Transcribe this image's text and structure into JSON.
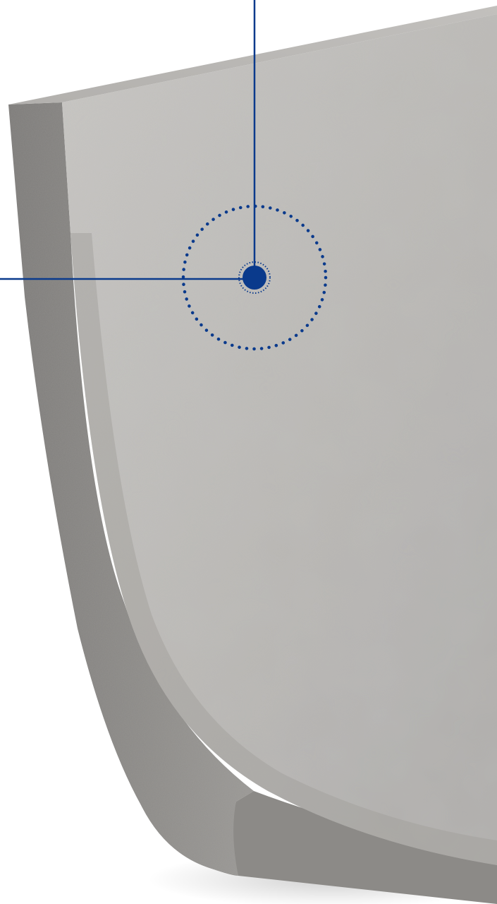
{
  "scene": {
    "background_color": "#ffffff",
    "object": "concrete-channel-section",
    "concrete_face_color": "#bdbbb8",
    "concrete_edge_color": "#8f8d8a",
    "concrete_top_color": "#a8a6a3"
  },
  "callout": {
    "icon": "dotted-circle-target",
    "accent_color": "#0a3a8c"
  }
}
